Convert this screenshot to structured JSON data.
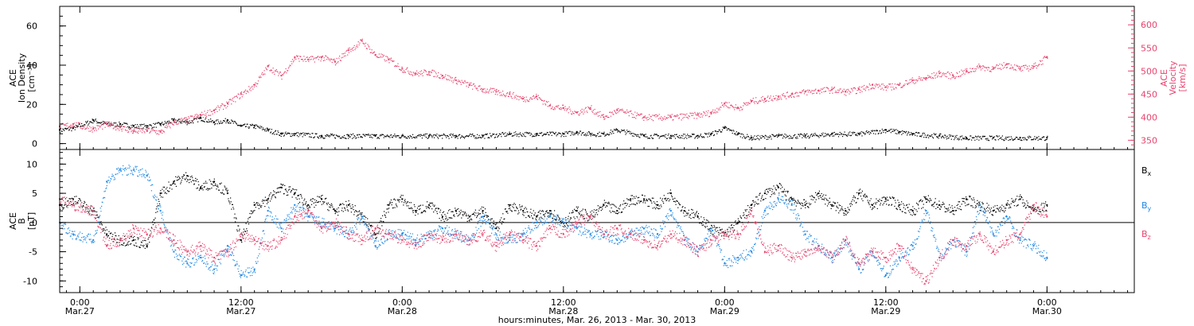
{
  "chart_data": {
    "type": "scatter",
    "x_axis": {
      "label": "hours:minutes, Mar. 26, 2013 - Mar. 30, 2013",
      "ticks": [
        {
          "time": "0:00",
          "date": "Mar.27",
          "hour": 0
        },
        {
          "time": "12:00",
          "date": "Mar.27",
          "hour": 12
        },
        {
          "time": "0:00",
          "date": "Mar.28",
          "hour": 24
        },
        {
          "time": "12:00",
          "date": "Mar.28",
          "hour": 36
        },
        {
          "time": "0:00",
          "date": "Mar.29",
          "hour": 48
        },
        {
          "time": "12:00",
          "date": "Mar.29",
          "hour": 60
        },
        {
          "time": "0:00",
          "date": "Mar.30",
          "hour": 72
        }
      ],
      "xlim": [
        -1.5,
        78.5
      ]
    },
    "top_panel": {
      "left_axis": {
        "line1": "ACE",
        "line2": "Ion Density",
        "units": "[cm⁻³]",
        "ylim": [
          -3,
          70
        ],
        "ticks": [
          0,
          20,
          40,
          60
        ]
      },
      "right_axis": {
        "line1": "ACE",
        "line2": "Velocity",
        "units": "[km/s]",
        "ylim": [
          330,
          640
        ],
        "ticks": [
          350,
          400,
          450,
          500,
          550,
          600
        ]
      },
      "series": [
        {
          "axis": "left",
          "color": "#000000",
          "x": [
            -1.5,
            -0.5,
            1,
            2,
            3,
            4,
            5,
            6,
            7,
            8,
            9,
            10,
            11,
            12,
            13,
            14,
            15,
            16,
            18,
            20,
            22,
            24,
            26,
            28,
            30,
            32,
            34,
            36,
            37,
            38,
            39,
            40,
            42,
            44,
            46,
            47,
            48,
            49,
            50,
            52,
            54,
            56,
            58,
            60,
            61,
            62,
            64,
            66,
            68,
            70,
            72
          ],
          "y": [
            7,
            8,
            12,
            10,
            10,
            9,
            9,
            10,
            12,
            11,
            13,
            11,
            12,
            9,
            9,
            7,
            5,
            5,
            4,
            4,
            4,
            4,
            4,
            4,
            4,
            5,
            5,
            5,
            6,
            5,
            5,
            7,
            4,
            4,
            4,
            5,
            8,
            5,
            3,
            4,
            4,
            5,
            5,
            7,
            6,
            5,
            4,
            3,
            3,
            3,
            3
          ]
        },
        {
          "axis": "right",
          "color": "#e8436d",
          "x": [
            -1.5,
            -0.5,
            1,
            2,
            3,
            4,
            5,
            6,
            7,
            8,
            9,
            10,
            11,
            12,
            13,
            14,
            15,
            16,
            17,
            18,
            19,
            20,
            21,
            22,
            23,
            24,
            25,
            26,
            27,
            28,
            29,
            30,
            31,
            32,
            33,
            34,
            35,
            36,
            37,
            38,
            39,
            40,
            42,
            44,
            46,
            47,
            48,
            49,
            50,
            51,
            52,
            53,
            54,
            55,
            56,
            57,
            58,
            59,
            60,
            61,
            62,
            63,
            64,
            65,
            66,
            67,
            68,
            69,
            70,
            71,
            72
          ],
          "y": [
            380,
            385,
            375,
            385,
            378,
            370,
            372,
            368,
            390,
            395,
            405,
            415,
            430,
            450,
            470,
            510,
            490,
            530,
            525,
            530,
            520,
            545,
            565,
            535,
            525,
            505,
            495,
            498,
            490,
            480,
            470,
            460,
            455,
            450,
            440,
            445,
            425,
            420,
            410,
            420,
            400,
            415,
            400,
            400,
            405,
            410,
            430,
            420,
            435,
            440,
            445,
            450,
            455,
            458,
            460,
            455,
            460,
            470,
            465,
            470,
            480,
            485,
            495,
            490,
            500,
            510,
            505,
            515,
            505,
            510,
            530
          ]
        }
      ]
    },
    "bottom_panel": {
      "left_axis": {
        "line1": "ACE",
        "line2": "B",
        "units": "[nT]",
        "ylim": [
          -12,
          12.5
        ],
        "ticks": [
          -10,
          -5,
          0,
          5,
          10
        ]
      },
      "legend": [
        {
          "label": "B",
          "sub": "x",
          "color": "#000000"
        },
        {
          "label": "B",
          "sub": "y",
          "color": "#1e88e5"
        },
        {
          "label": "B",
          "sub": "z",
          "color": "#e8436d"
        }
      ],
      "series": [
        {
          "name": "Bx",
          "color": "#000000",
          "x": [
            -1.5,
            -0.5,
            1,
            2,
            3,
            4,
            5,
            6,
            7,
            8,
            9,
            10,
            11,
            12,
            13,
            14,
            15,
            16,
            17,
            18,
            19,
            20,
            21,
            22,
            23,
            24,
            25,
            26,
            27,
            28,
            29,
            30,
            31,
            32,
            33,
            34,
            35,
            36,
            37,
            38,
            39,
            40,
            41,
            42,
            43,
            44,
            45,
            46,
            47,
            48,
            49,
            50,
            51,
            52,
            53,
            54,
            55,
            56,
            57,
            58,
            59,
            60,
            61,
            62,
            63,
            64,
            65,
            66,
            67,
            68,
            69,
            70,
            71,
            72
          ],
          "y": [
            3,
            4,
            2,
            -2,
            -3,
            -3,
            -4,
            5,
            7,
            8,
            6,
            7,
            5,
            -3,
            3,
            4,
            6,
            5,
            3,
            4,
            2,
            3,
            1,
            -2,
            3,
            4,
            2,
            3,
            1,
            2,
            1,
            2,
            -1,
            3,
            2,
            1,
            2,
            0,
            2,
            1,
            3,
            2,
            4,
            4,
            3,
            5,
            2,
            1,
            -1,
            -2,
            0,
            3,
            5,
            6,
            4,
            3,
            5,
            3,
            2,
            5,
            3,
            4,
            3,
            2,
            4,
            3,
            2,
            4,
            3,
            2,
            3,
            4,
            2,
            3
          ]
        },
        {
          "name": "By",
          "color": "#1e88e5",
          "x": [
            -1.5,
            -0.5,
            1,
            2,
            3,
            4,
            5,
            6,
            7,
            8,
            9,
            10,
            11,
            12,
            13,
            14,
            15,
            16,
            17,
            18,
            19,
            20,
            21,
            22,
            23,
            24,
            25,
            26,
            27,
            28,
            29,
            30,
            31,
            32,
            33,
            34,
            35,
            36,
            37,
            38,
            39,
            40,
            41,
            42,
            43,
            44,
            45,
            46,
            47,
            48,
            49,
            50,
            51,
            52,
            53,
            54,
            55,
            56,
            57,
            58,
            59,
            60,
            61,
            62,
            63,
            64,
            65,
            66,
            67,
            68,
            69,
            70,
            71,
            72
          ],
          "y": [
            0,
            -2,
            -3,
            7,
            9,
            9,
            8,
            2,
            -5,
            -7,
            -6,
            -8,
            -4,
            -9,
            -8,
            2,
            -1,
            3,
            1,
            0,
            -1,
            -2,
            1,
            -4,
            -2,
            -2,
            -3,
            -2,
            -1,
            -2,
            -3,
            1,
            -2,
            -3,
            -2,
            0,
            1,
            0,
            -1,
            -2,
            -2,
            -3,
            -2,
            -1,
            -2,
            2,
            -3,
            -5,
            -1,
            -7,
            -6,
            -5,
            2,
            4,
            3,
            -2,
            -4,
            -6,
            -3,
            -8,
            -5,
            -9,
            -6,
            -4,
            2,
            -6,
            -3,
            -5,
            3,
            -2,
            1,
            -3,
            -4,
            -6
          ]
        },
        {
          "name": "Bz",
          "color": "#e8436d",
          "x": [
            -1.5,
            -0.5,
            1,
            2,
            3,
            4,
            5,
            6,
            7,
            8,
            9,
            10,
            11,
            12,
            13,
            14,
            15,
            16,
            17,
            18,
            19,
            20,
            21,
            22,
            23,
            24,
            25,
            26,
            27,
            28,
            29,
            30,
            31,
            32,
            33,
            34,
            35,
            36,
            37,
            38,
            39,
            40,
            41,
            42,
            43,
            44,
            45,
            46,
            47,
            48,
            49,
            50,
            51,
            52,
            53,
            54,
            55,
            56,
            57,
            58,
            59,
            60,
            61,
            62,
            63,
            64,
            65,
            66,
            67,
            68,
            69,
            70,
            71,
            72
          ],
          "y": [
            4,
            3,
            2,
            -4,
            -3,
            -1,
            -2,
            -1,
            -3,
            -5,
            -4,
            -6,
            -5,
            -2,
            -3,
            -4,
            -3,
            1,
            2,
            -1,
            0,
            -2,
            -3,
            -1,
            -2,
            -3,
            -4,
            -2,
            -3,
            -2,
            -3,
            -2,
            -4,
            -2,
            -3,
            -4,
            -1,
            -2,
            0,
            1,
            -2,
            -1,
            -2,
            -3,
            -4,
            -2,
            -3,
            -5,
            -3,
            -2,
            -2,
            2,
            -5,
            -4,
            -6,
            -5,
            -4,
            -6,
            -3,
            -7,
            -5,
            -6,
            -4,
            -8,
            -10,
            -6,
            -3,
            -4,
            -2,
            -5,
            -3,
            -2,
            3,
            1
          ]
        }
      ]
    }
  }
}
